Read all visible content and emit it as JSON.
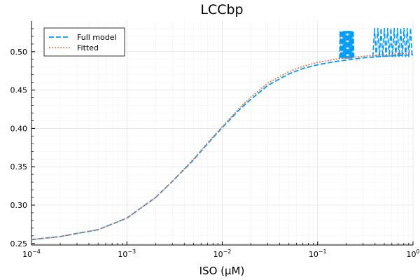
{
  "chart_data": {
    "type": "line",
    "title": "LCCbp",
    "xlabel": "ISO (μM)",
    "ylabel": "",
    "xscale": "log",
    "xlim": [
      0.0001,
      1
    ],
    "ylim": [
      0.248,
      0.54
    ],
    "grid": true,
    "legend_position": "top-left",
    "x_ticks": [
      {
        "value": 0.0001,
        "base": "10",
        "exp": "−4"
      },
      {
        "value": 0.001,
        "base": "10",
        "exp": "−3"
      },
      {
        "value": 0.01,
        "base": "10",
        "exp": "−2"
      },
      {
        "value": 0.1,
        "base": "10",
        "exp": "−1"
      },
      {
        "value": 1,
        "base": "10",
        "exp": "0"
      }
    ],
    "y_ticks": [
      {
        "value": 0.25,
        "label": "0.25"
      },
      {
        "value": 0.3,
        "label": "0.30"
      },
      {
        "value": 0.35,
        "label": "0.35"
      },
      {
        "value": 0.4,
        "label": "0.40"
      },
      {
        "value": 0.45,
        "label": "0.45"
      },
      {
        "value": 0.5,
        "label": "0.50"
      }
    ],
    "series": [
      {
        "name": "Full model",
        "color": "#009AFA",
        "style": "dashed",
        "x": [
          0.0001,
          0.0002,
          0.0005,
          0.001,
          0.002,
          0.003,
          0.005,
          0.007,
          0.01,
          0.015,
          0.02,
          0.03,
          0.05,
          0.07,
          0.1,
          0.15,
          0.2,
          0.3,
          0.5,
          0.7,
          1
        ],
        "y": [
          0.255,
          0.259,
          0.268,
          0.283,
          0.31,
          0.331,
          0.359,
          0.38,
          0.401,
          0.424,
          0.438,
          0.456,
          0.471,
          0.478,
          0.483,
          0.487,
          0.489,
          0.492,
          0.494,
          0.495,
          0.496
        ],
        "noise_segments": [
          {
            "x_start": 0.17,
            "x_end": 0.24,
            "y_low": 0.491,
            "y_high": 0.527
          },
          {
            "x_start": 0.38,
            "x_end": 0.98,
            "y_low": 0.493,
            "y_high": 0.531
          }
        ]
      },
      {
        "name": "Fitted",
        "color": "#E26F46",
        "style": "dotted",
        "x": [
          0.0001,
          0.0002,
          0.0005,
          0.001,
          0.002,
          0.003,
          0.005,
          0.007,
          0.01,
          0.015,
          0.02,
          0.03,
          0.05,
          0.07,
          0.1,
          0.15,
          0.2,
          0.3,
          0.5,
          0.7,
          1
        ],
        "y": [
          0.255,
          0.259,
          0.268,
          0.283,
          0.31,
          0.331,
          0.36,
          0.381,
          0.402,
          0.426,
          0.441,
          0.459,
          0.474,
          0.481,
          0.486,
          0.49,
          0.492,
          0.494,
          0.496,
          0.497,
          0.498
        ]
      }
    ]
  }
}
